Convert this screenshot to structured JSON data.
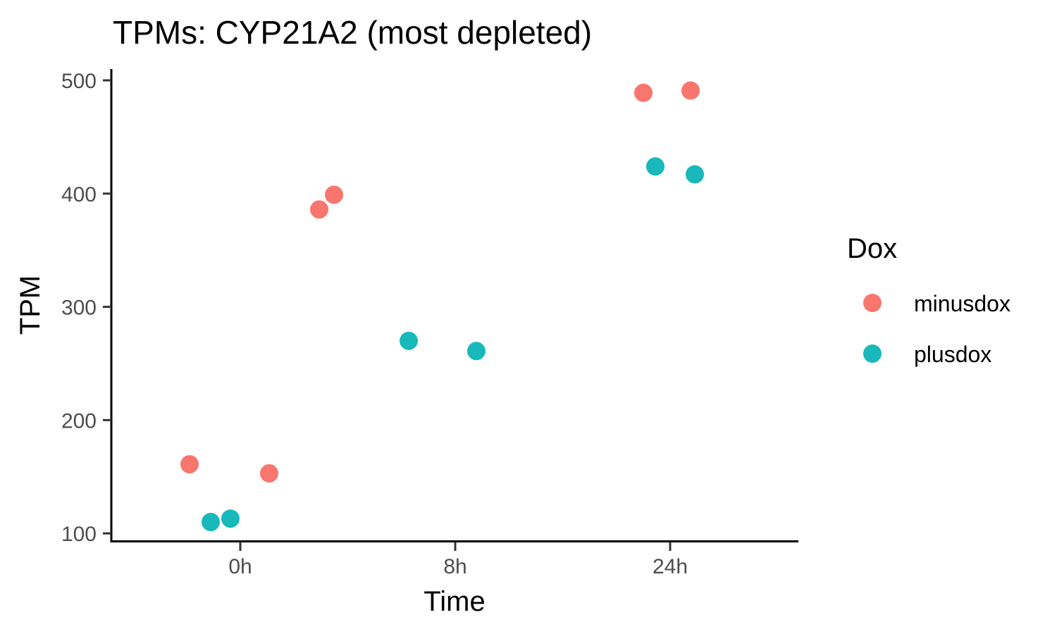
{
  "chart_data": {
    "type": "scatter",
    "title": "TPMs: CYP21A2 (most depleted)",
    "xlabel": "Time",
    "ylabel": "TPM",
    "categories": [
      "0h",
      "8h",
      "24h"
    ],
    "yticks": [
      100,
      200,
      300,
      400,
      500
    ],
    "ylim": [
      92,
      510
    ],
    "grid": false,
    "legend": {
      "title": "Dox",
      "position": "right"
    },
    "series": [
      {
        "name": "minusdox",
        "color": "#F8766D",
        "points": [
          {
            "x": "0h",
            "y": 161
          },
          {
            "x": "0h",
            "y": 153
          },
          {
            "x": "8h",
            "y": 386
          },
          {
            "x": "8h",
            "y": 399
          },
          {
            "x": "24h",
            "y": 489
          },
          {
            "x": "24h",
            "y": 491
          }
        ]
      },
      {
        "name": "plusdox",
        "color": "#19B8BA",
        "points": [
          {
            "x": "0h",
            "y": 110
          },
          {
            "x": "0h",
            "y": 113
          },
          {
            "x": "8h",
            "y": 270
          },
          {
            "x": "8h",
            "y": 261
          },
          {
            "x": "24h",
            "y": 424
          },
          {
            "x": "24h",
            "y": 417
          }
        ]
      }
    ]
  }
}
